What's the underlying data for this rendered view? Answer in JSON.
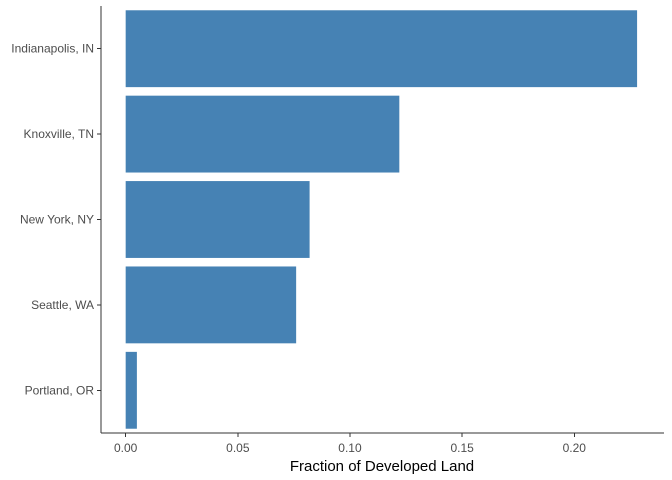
{
  "chart_data": {
    "type": "bar",
    "orientation": "horizontal",
    "categories": [
      "Indianapolis, IN",
      "Knoxville, TN",
      "New York, NY",
      "Seattle, WA",
      "Portland, OR"
    ],
    "values": [
      0.228,
      0.122,
      0.082,
      0.076,
      0.005
    ],
    "title": "",
    "xlabel": "Fraction of Developed Land",
    "ylabel": "",
    "xlim": [
      -0.011,
      0.24
    ],
    "xticks": [
      0.0,
      0.05,
      0.1,
      0.15,
      0.2
    ],
    "xtick_labels": [
      "0.00",
      "0.05",
      "0.10",
      "0.15",
      "0.20"
    ],
    "grid": false,
    "legend": "none",
    "bar_color": "#4682B4",
    "axis_color": "#333333",
    "tick_label_color": "#4d4d4d"
  }
}
